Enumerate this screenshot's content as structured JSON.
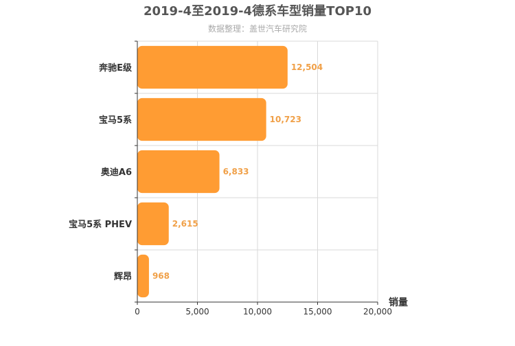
{
  "chart_data": {
    "type": "bar",
    "orientation": "horizontal",
    "title": "2019-4至2019-4德系车型销量TOP10",
    "subtitle": "数据整理：盖世汽车研究院",
    "categories": [
      "奔驰E级",
      "宝马5系",
      "奥迪A6",
      "宝马5系  PHEV",
      "辉昂"
    ],
    "values": [
      12504,
      10723,
      6833,
      2615,
      968
    ],
    "value_labels": [
      "12,504",
      "10,723",
      "6,833",
      "2,615",
      "968"
    ],
    "xlabel": "销量",
    "ylabel": "",
    "xlim": [
      0,
      20000
    ],
    "xticks": [
      0,
      5000,
      10000,
      15000,
      20000
    ],
    "xtick_labels": [
      "0",
      "5,000",
      "10,000",
      "15,000",
      "20,000"
    ],
    "grid": true,
    "legend": "none",
    "colors": {
      "bar": "#ff9c33",
      "value_label": "#f0a048",
      "grid": "#d9d9d9",
      "axis": "#333333",
      "title": "#555555",
      "subtitle": "#aaaaaa"
    }
  }
}
